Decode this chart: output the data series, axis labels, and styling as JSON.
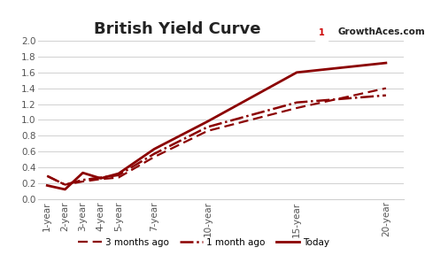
{
  "title": "British Yield Curve",
  "x_labels": [
    "1-year",
    "2-year",
    "3-year",
    "4-year",
    "5-year",
    "7-year",
    "10-year",
    "15-year",
    "20-year"
  ],
  "x_positions": [
    1,
    2,
    3,
    4,
    5,
    7,
    10,
    15,
    20
  ],
  "today": [
    0.17,
    0.12,
    0.33,
    0.26,
    0.32,
    0.63,
    0.98,
    1.6,
    1.72
  ],
  "one_month_ago": [
    0.29,
    0.18,
    0.24,
    0.27,
    0.3,
    0.57,
    0.91,
    1.22,
    1.31
  ],
  "three_months_ago": [
    0.29,
    0.18,
    0.22,
    0.25,
    0.27,
    0.53,
    0.86,
    1.15,
    1.4
  ],
  "line_color": "#8B0000",
  "ylim": [
    0.0,
    2.0
  ],
  "yticks": [
    0.0,
    0.2,
    0.4,
    0.6,
    0.8,
    1.0,
    1.2,
    1.4,
    1.6,
    1.8,
    2.0
  ],
  "legend_labels": [
    "3 months ago",
    "1 month ago",
    "Today"
  ],
  "bg_color": "#ffffff",
  "grid_color": "#d0d0d0",
  "title_fontsize": 13,
  "axis_fontsize": 7.5
}
